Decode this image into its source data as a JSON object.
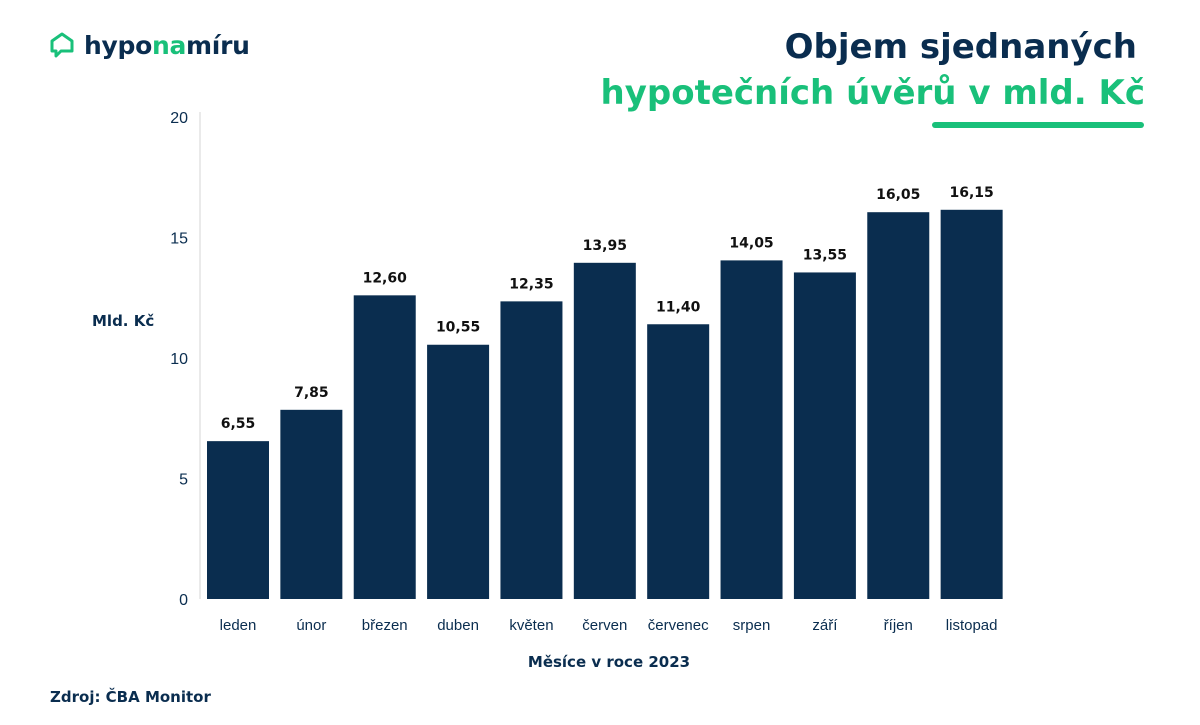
{
  "logo": {
    "part1": "hypo",
    "part2": "na",
    "part3": "míru",
    "icon": "house-chat-icon"
  },
  "title": {
    "line1": "Objem sjednaných",
    "line2": "hypotečních úvěrů v mld. Kč"
  },
  "source": "Zdroj: ČBA Monitor",
  "colors": {
    "navy": "#0a2d4f",
    "green": "#19c07a"
  },
  "chart_data": {
    "type": "bar",
    "title": "Objem sjednaných hypotečních úvěrů v mld. Kč",
    "xlabel": "Měsíce v roce 2023",
    "ylabel": "Mld. Kč",
    "ylim": [
      0,
      20
    ],
    "yticks": [
      0,
      5,
      10,
      15,
      20
    ],
    "categories": [
      "leden",
      "únor",
      "březen",
      "duben",
      "květen",
      "červen",
      "červenec",
      "srpen",
      "září",
      "říjen",
      "listopad"
    ],
    "values": [
      6.55,
      7.85,
      12.6,
      10.55,
      12.35,
      13.95,
      11.4,
      14.05,
      13.55,
      16.05,
      16.15
    ],
    "value_labels": [
      "6,55",
      "7,85",
      "12,60",
      "10,55",
      "12,35",
      "13,95",
      "11,40",
      "14,05",
      "13,55",
      "16,05",
      "16,15"
    ],
    "grid": false,
    "bar_color": "#0a2d4f"
  }
}
